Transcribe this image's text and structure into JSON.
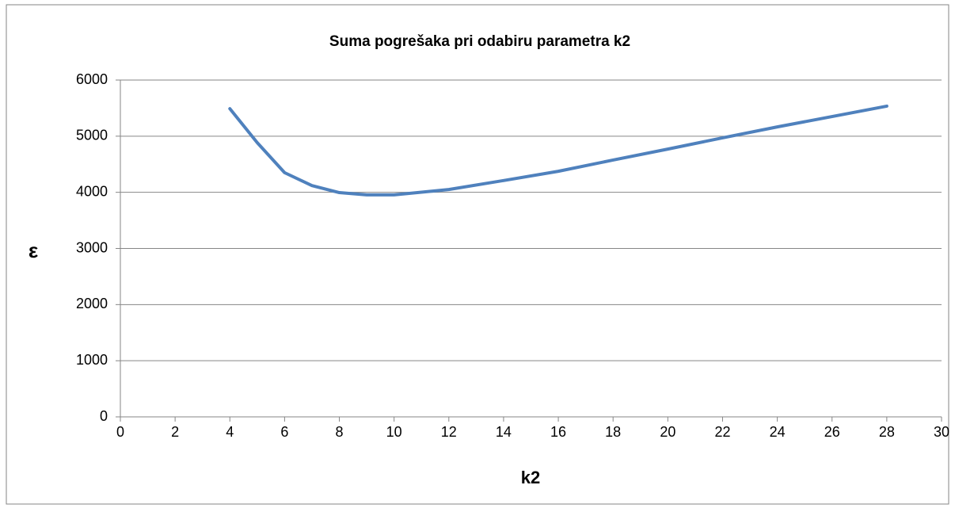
{
  "chart_data": {
    "type": "line",
    "title": "Suma pogrešaka pri odabiru parametra k2",
    "x_label": "k2",
    "y_label": "ε",
    "x": [
      4,
      5,
      6,
      7,
      8,
      9,
      10,
      12,
      14,
      16,
      18,
      20,
      22,
      24,
      26,
      28
    ],
    "series": [
      {
        "name": "ε",
        "color": "#4f81bd",
        "values": [
          5490,
          4885,
          4350,
          4120,
          3995,
          3955,
          3955,
          4050,
          4210,
          4375,
          4575,
          4770,
          4970,
          5165,
          5350,
          5535
        ]
      }
    ],
    "xlim": [
      0,
      30
    ],
    "xticks": [
      0,
      2,
      4,
      6,
      8,
      10,
      12,
      14,
      16,
      18,
      20,
      22,
      24,
      26,
      28,
      30
    ],
    "ylim": [
      0,
      6000
    ],
    "yticks": [
      0,
      1000,
      2000,
      3000,
      4000,
      5000,
      6000
    ],
    "grid": true
  }
}
